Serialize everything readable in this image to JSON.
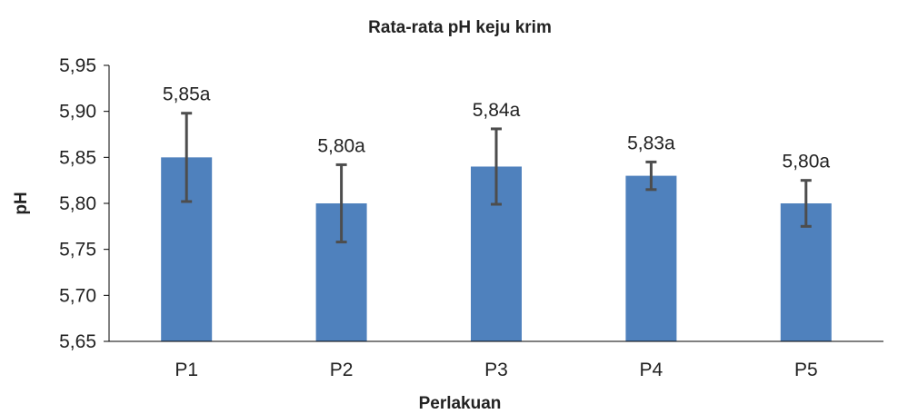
{
  "chart_data": {
    "type": "bar",
    "title": "Rata-rata pH keju krim",
    "xlabel": "Perlakuan",
    "ylabel": "pH",
    "categories": [
      "P1",
      "P2",
      "P3",
      "P4",
      "P5"
    ],
    "values": [
      5.85,
      5.8,
      5.84,
      5.83,
      5.8
    ],
    "error": [
      0.048,
      0.042,
      0.041,
      0.015,
      0.025
    ],
    "data_labels": [
      "5,85a",
      "5,80a",
      "5,84a",
      "5,83a",
      "5,80a"
    ],
    "ylim": [
      5.65,
      5.95
    ],
    "yticks": [
      5.65,
      5.7,
      5.75,
      5.8,
      5.85,
      5.9,
      5.95
    ],
    "ytick_labels": [
      "5,65",
      "5,70",
      "5,75",
      "5,80",
      "5,85",
      "5,90",
      "5,95"
    ],
    "grid": false,
    "legend": "none",
    "colors": {
      "bar": "#4F81BD",
      "error_bar": "#4D4D4D",
      "axis": "#000000"
    }
  }
}
